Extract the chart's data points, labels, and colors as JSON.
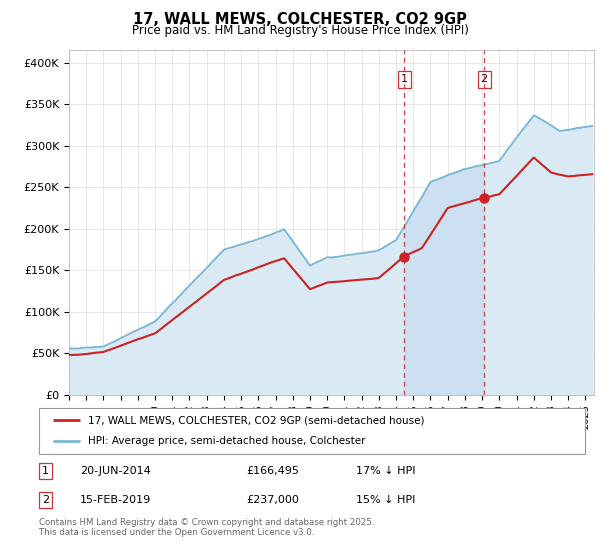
{
  "title": "17, WALL MEWS, COLCHESTER, CO2 9GP",
  "subtitle": "Price paid vs. HM Land Registry's House Price Index (HPI)",
  "ylabel_ticks": [
    "£0",
    "£50K",
    "£100K",
    "£150K",
    "£200K",
    "£250K",
    "£300K",
    "£350K",
    "£400K"
  ],
  "ytick_vals": [
    0,
    50000,
    100000,
    150000,
    200000,
    250000,
    300000,
    350000,
    400000
  ],
  "ylim": [
    0,
    415000
  ],
  "xlim_start": 1995.0,
  "xlim_end": 2025.5,
  "hpi_color": "#7ab5d8",
  "hpi_fill_color": "#daeaf5",
  "price_color": "#cc2222",
  "vline_color": "#cc3333",
  "sale1_year": 2014.47,
  "sale1_price": 166495,
  "sale2_year": 2019.12,
  "sale2_price": 237000,
  "legend_label1": "17, WALL MEWS, COLCHESTER, CO2 9GP (semi-detached house)",
  "legend_label2": "HPI: Average price, semi-detached house, Colchester",
  "table_row1": [
    "1",
    "20-JUN-2014",
    "£166,495",
    "17% ↓ HPI"
  ],
  "table_row2": [
    "2",
    "15-FEB-2019",
    "£237,000",
    "15% ↓ HPI"
  ],
  "footnote": "Contains HM Land Registry data © Crown copyright and database right 2025.\nThis data is licensed under the Open Government Licence v3.0.",
  "background_color": "#ffffff",
  "grid_color": "#dddddd"
}
